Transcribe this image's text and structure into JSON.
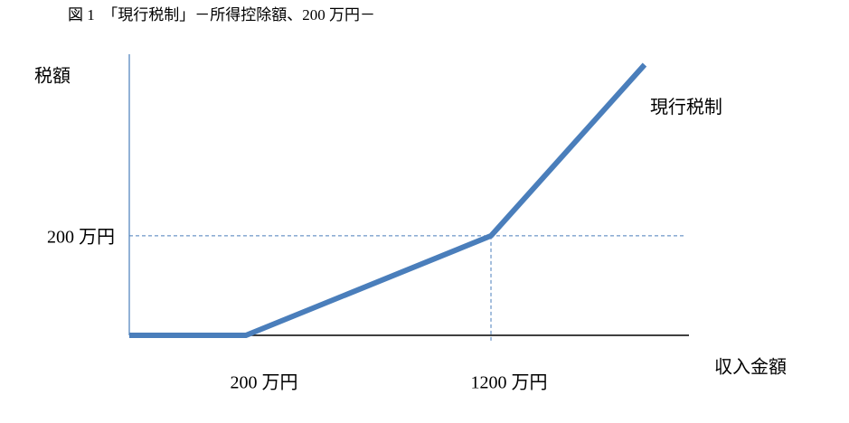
{
  "chart_data": {
    "type": "line",
    "title": "図 1　「現行税制」－所得控除額、200 万円－",
    "y_label": "税額",
    "x_label": "収入金額",
    "series": [
      {
        "name": "現行税制",
        "color": "#4a7ebb",
        "x": [
          -276,
          200,
          1200,
          1827
        ],
        "values": [
          0,
          0,
          200,
          544
        ]
      }
    ],
    "xlim": [
      -276,
      2008
    ],
    "ylim": [
      0,
      565
    ],
    "xticks": [
      {
        "value": 200,
        "label": "200 万円"
      },
      {
        "value": 1200,
        "label": "1200 万円"
      }
    ],
    "yticks": [
      {
        "value": 200,
        "label": "200 万円"
      }
    ],
    "grid": true
  }
}
